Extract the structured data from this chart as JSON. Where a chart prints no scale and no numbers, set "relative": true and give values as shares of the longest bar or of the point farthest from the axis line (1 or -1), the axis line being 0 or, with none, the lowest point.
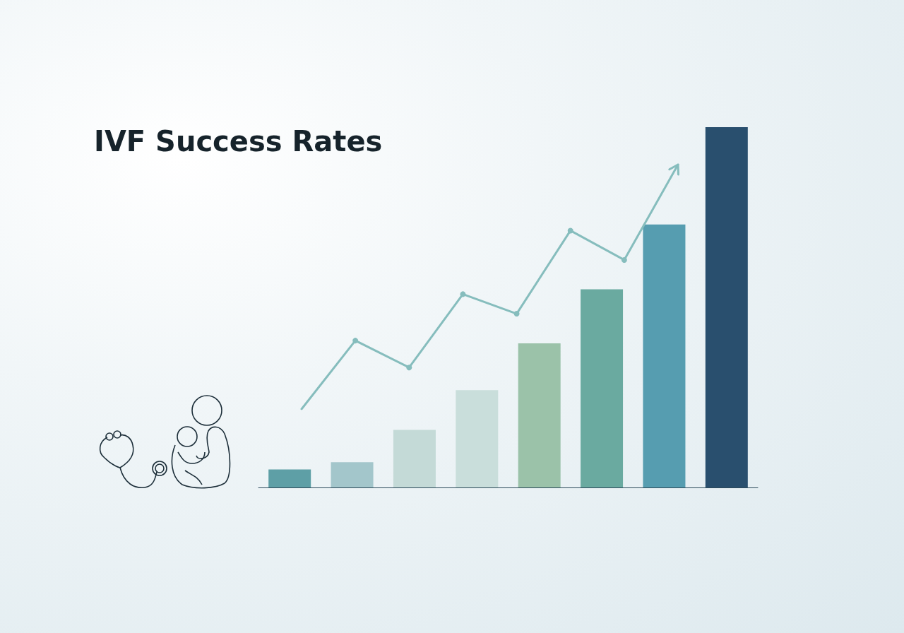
{
  "chart_data": [
    {
      "type": "bar",
      "title": "IVF Success Rates",
      "relative": true,
      "categories": [
        null,
        null,
        null,
        null,
        null,
        null,
        null,
        null
      ],
      "values": [
        0.05,
        0.07,
        0.16,
        0.27,
        0.4,
        0.55,
        0.73,
        1
      ],
      "colors": [
        "#5e9fa6",
        "#a3c6cb",
        "#c4dad7",
        "#c9dedb",
        "#9bc2a9",
        "#6aaaa0",
        "#569db0",
        "#294f6e"
      ]
    },
    {
      "type": "line",
      "relative": true,
      "categories": [
        null,
        null,
        null,
        null,
        null,
        null,
        null,
        null
      ],
      "values": [
        0,
        0.28,
        0.17,
        0.47,
        0.39,
        0.73,
        0.61,
        1
      ],
      "color": "#86bdbd",
      "marker": "circle"
    }
  ]
}
